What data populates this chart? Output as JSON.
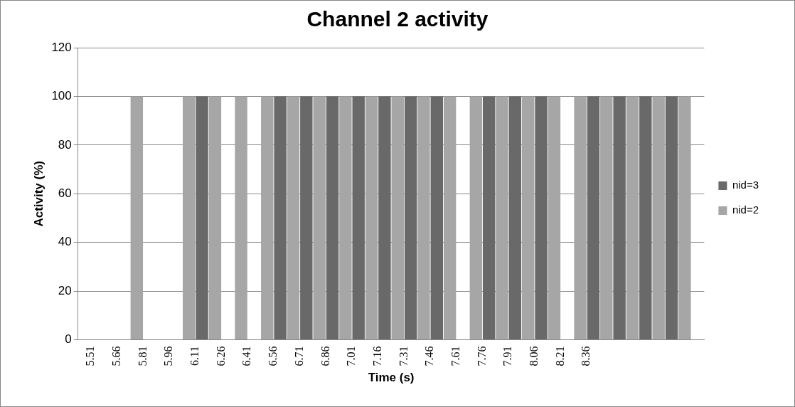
{
  "chart_data": {
    "type": "bar",
    "title": "Channel 2 activity",
    "xlabel": "Time (s)",
    "ylabel": "Activity (%)",
    "categories": [
      "5.51",
      "5.66",
      "5.81",
      "5.96",
      "6.11",
      "6.26",
      "6.41",
      "6.56",
      "6.71",
      "6.86",
      "7.01",
      "7.16",
      "7.31",
      "7.46",
      "7.61",
      "7.76",
      "7.91",
      "8.06",
      "8.21",
      "8.36",
      null,
      null,
      null,
      null
    ],
    "series": [
      {
        "name": "nid=2",
        "color": "#a6a6a6",
        "values": [
          null,
          null,
          100,
          null,
          100,
          100,
          100,
          100,
          100,
          100,
          100,
          100,
          100,
          100,
          100,
          100,
          100,
          100,
          100,
          100,
          100,
          100,
          100,
          100
        ]
      },
      {
        "name": "nid=3",
        "color": "#696969",
        "values": [
          null,
          null,
          null,
          null,
          100,
          null,
          null,
          100,
          100,
          100,
          100,
          100,
          100,
          100,
          null,
          100,
          100,
          100,
          null,
          100,
          100,
          100,
          100,
          null
        ]
      }
    ],
    "ylim": [
      0,
      120
    ],
    "yticks": [
      0,
      20,
      40,
      60,
      80,
      100,
      120
    ],
    "grid": "y",
    "legend": "right"
  }
}
